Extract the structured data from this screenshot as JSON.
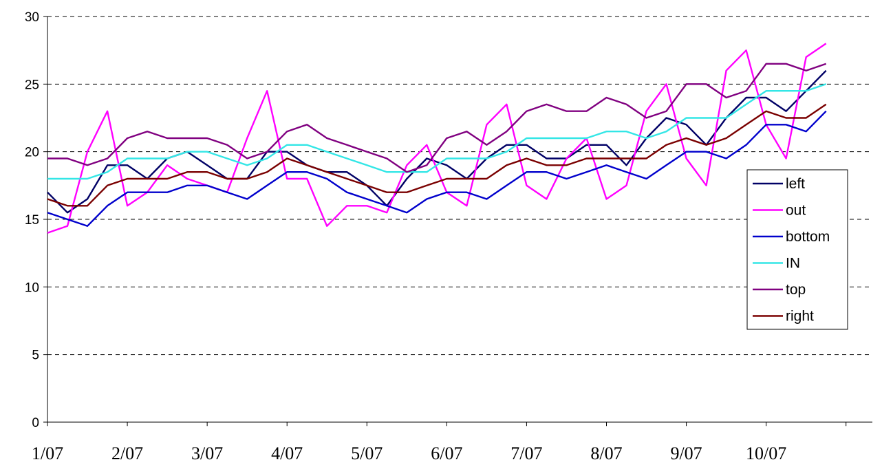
{
  "chart_data": {
    "type": "line",
    "title": "",
    "xlabel": "",
    "ylabel": "",
    "ylim": [
      0,
      30
    ],
    "yticks": [
      0,
      5,
      10,
      15,
      20,
      25,
      30
    ],
    "grid": true,
    "legend_position": "right",
    "x_month_labels": [
      "1/07",
      "2/07",
      "3/07",
      "4/07",
      "5/07",
      "6/07",
      "7/07",
      "8/07",
      "9/07",
      "10/07"
    ],
    "series": [
      {
        "name": "left",
        "color": "#000066",
        "values": [
          17,
          15.5,
          16.5,
          19,
          19,
          18,
          19.5,
          20,
          19,
          18,
          18,
          20,
          20,
          19,
          18.5,
          18.5,
          17.5,
          16,
          18,
          19.5,
          19,
          18,
          19.5,
          20.5,
          20.5,
          19.5,
          19.5,
          20.5,
          20.5,
          19,
          21,
          22.5,
          22,
          20.5,
          22.5,
          24,
          24,
          23,
          24.5,
          26
        ]
      },
      {
        "name": "out",
        "color": "#ff00ff",
        "values": [
          14,
          14.5,
          20,
          23,
          16,
          17,
          19,
          18,
          17.5,
          17,
          21,
          24.5,
          18,
          18,
          14.5,
          16,
          16,
          15.5,
          19,
          20.5,
          17,
          16,
          22,
          23.5,
          17.5,
          16.5,
          19.5,
          21,
          16.5,
          17.5,
          23,
          25,
          19.5,
          17.5,
          26,
          27.5,
          22,
          19.5,
          27,
          28
        ]
      },
      {
        "name": "bottom",
        "color": "#0000cc",
        "values": [
          15.5,
          15,
          14.5,
          16,
          17,
          17,
          17,
          17.5,
          17.5,
          17,
          16.5,
          17.5,
          18.5,
          18.5,
          18,
          17,
          16.5,
          16,
          15.5,
          16.5,
          17,
          17,
          16.5,
          17.5,
          18.5,
          18.5,
          18,
          18.5,
          19,
          18.5,
          18,
          19,
          20,
          20,
          19.5,
          20.5,
          22,
          22,
          21.5,
          23
        ]
      },
      {
        "name": "IN",
        "color": "#33e6e6",
        "values": [
          18,
          18,
          18,
          18.5,
          19.5,
          19.5,
          19.5,
          20,
          20,
          19.5,
          19,
          19.5,
          20.5,
          20.5,
          20,
          19.5,
          19,
          18.5,
          18.5,
          18.5,
          19.5,
          19.5,
          19.5,
          20,
          21,
          21,
          21,
          21,
          21.5,
          21.5,
          21,
          21.5,
          22.5,
          22.5,
          22.5,
          23.5,
          24.5,
          24.5,
          24.5,
          25
        ]
      },
      {
        "name": "top",
        "color": "#800080",
        "values": [
          19.5,
          19.5,
          19,
          19.5,
          21,
          21.5,
          21,
          21,
          21,
          20.5,
          19.5,
          20,
          21.5,
          22,
          21,
          20.5,
          20,
          19.5,
          18.5,
          19,
          21,
          21.5,
          20.5,
          21.5,
          23,
          23.5,
          23,
          23,
          24,
          23.5,
          22.5,
          23,
          25,
          25,
          24,
          24.5,
          26.5,
          26.5,
          26,
          26.5
        ]
      },
      {
        "name": "right",
        "color": "#7a0000",
        "values": [
          16.5,
          16,
          16,
          17.5,
          18,
          18,
          18,
          18.5,
          18.5,
          18,
          18,
          18.5,
          19.5,
          19,
          18.5,
          18,
          17.5,
          17,
          17,
          17.5,
          18,
          18,
          18,
          19,
          19.5,
          19,
          19,
          19.5,
          19.5,
          19.5,
          19.5,
          20.5,
          21,
          20.5,
          21,
          22,
          23,
          22.5,
          22.5,
          23.5
        ]
      }
    ]
  }
}
